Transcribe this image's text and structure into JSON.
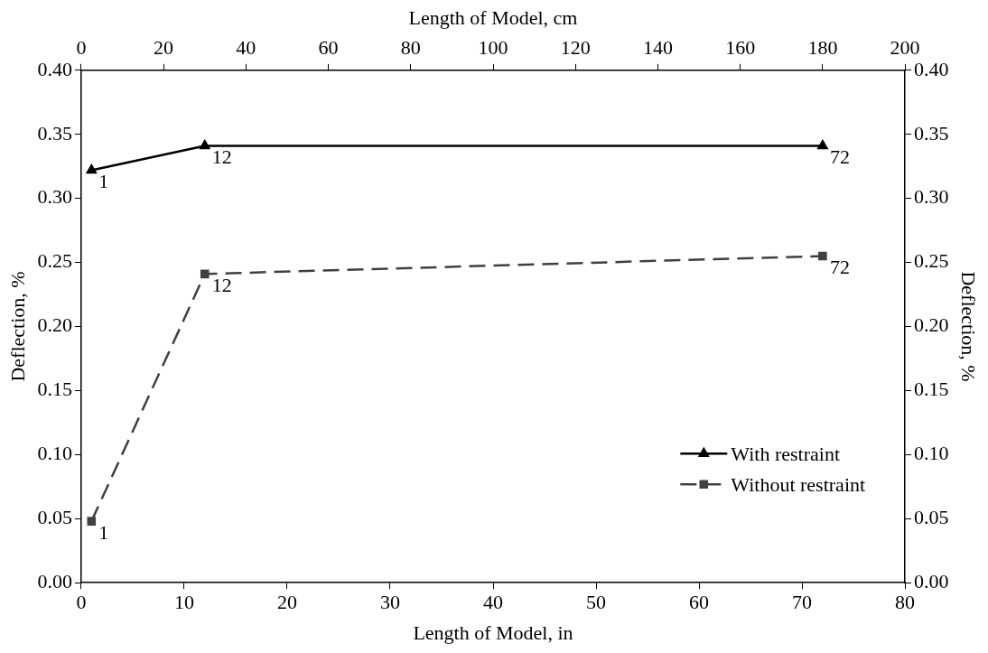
{
  "chart_data": {
    "type": "line",
    "xlabel": "Length of Model, in",
    "x2label": "Length of Model, cm",
    "ylabel": "Deflection, %",
    "y2label": "Deflection, %",
    "xlim": [
      0,
      80
    ],
    "xticks": [
      0,
      10,
      20,
      30,
      40,
      50,
      60,
      70,
      80
    ],
    "x2lim": [
      0,
      200
    ],
    "x2ticks": [
      0,
      20,
      40,
      60,
      80,
      100,
      120,
      140,
      160,
      180,
      200
    ],
    "ylim": [
      0,
      0.4
    ],
    "yticks": [
      {
        "value": 0,
        "label": "0.00"
      },
      {
        "value": 0.05,
        "label": "0.05"
      },
      {
        "value": 0.1,
        "label": "0.10"
      },
      {
        "value": 0.15,
        "label": "0.15"
      },
      {
        "value": 0.2,
        "label": "0.20"
      },
      {
        "value": 0.25,
        "label": "0.25"
      },
      {
        "value": 0.3,
        "label": "0.30"
      },
      {
        "value": 0.35,
        "label": "0.35"
      },
      {
        "value": 0.4,
        "label": "0.40"
      }
    ],
    "y2lim": [
      0,
      0.4
    ],
    "y2ticks": [
      {
        "value": 0,
        "label": "0.00"
      },
      {
        "value": 0.05,
        "label": "0.05"
      },
      {
        "value": 0.1,
        "label": "0.10"
      },
      {
        "value": 0.15,
        "label": "0.15"
      },
      {
        "value": 0.2,
        "label": "0.20"
      },
      {
        "value": 0.25,
        "label": "0.25"
      },
      {
        "value": 0.3,
        "label": "0.30"
      },
      {
        "value": 0.35,
        "label": "0.35"
      },
      {
        "value": 0.4,
        "label": "0.40"
      }
    ],
    "grid": false,
    "legend": "bottom right",
    "annotations": [
      {
        "text": "1",
        "x": 1,
        "y": 0.322
      },
      {
        "text": "12",
        "x": 12,
        "y": 0.341
      },
      {
        "text": "72",
        "x": 72,
        "y": 0.341
      },
      {
        "text": "1",
        "x": 1,
        "y": 0.048
      },
      {
        "text": "12",
        "x": 12,
        "y": 0.241
      },
      {
        "text": "72",
        "x": 72,
        "y": 0.255
      }
    ],
    "series": [
      {
        "name": "With restraint",
        "color": "#000000",
        "x": [
          1,
          12,
          72
        ],
        "values": [
          0.322,
          0.341,
          0.341
        ],
        "marker": "triangle",
        "line_style": "solid"
      },
      {
        "name": "Without restraint",
        "color": "#404040",
        "x": [
          1,
          12,
          72
        ],
        "values": [
          0.048,
          0.241,
          0.255
        ],
        "marker": "square",
        "line_style": "dashed"
      }
    ]
  }
}
